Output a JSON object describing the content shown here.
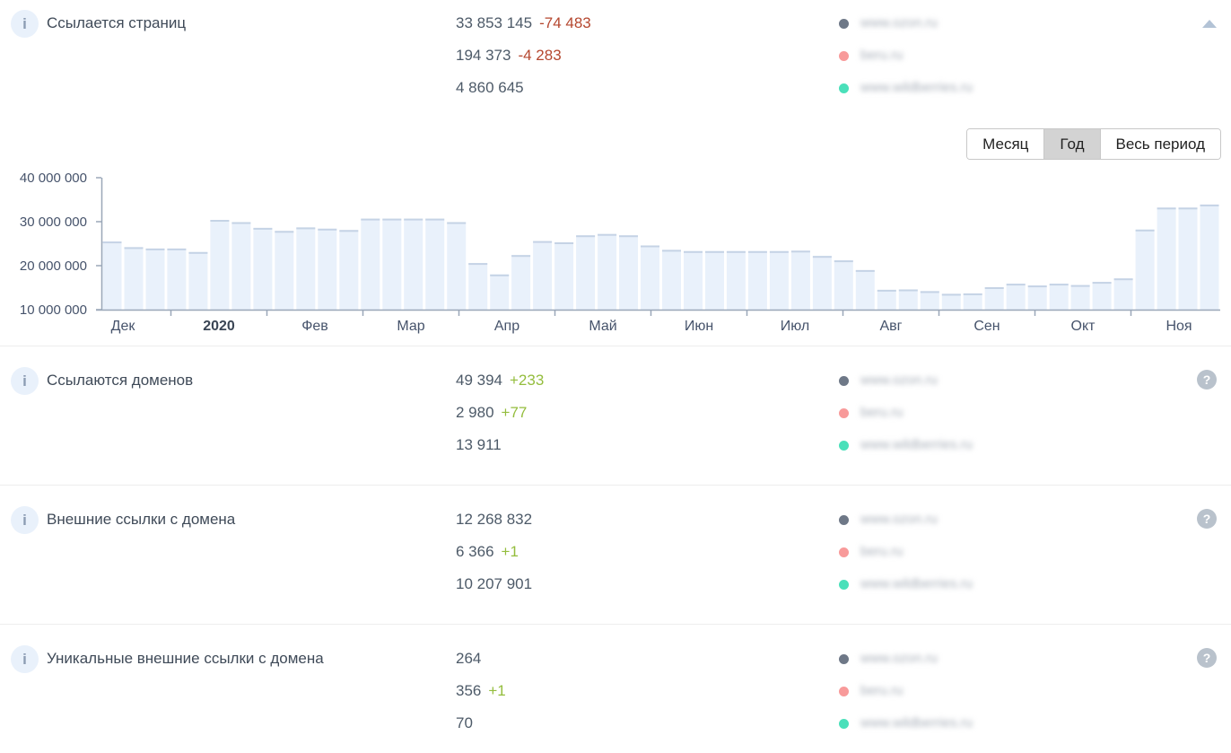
{
  "legend": {
    "domains": [
      {
        "label": "www.ozon.ru",
        "dot_color": "#6e7887"
      },
      {
        "label": "beru.ru",
        "dot_color": "#f89a9a"
      },
      {
        "label": "www.wildberries.ru",
        "dot_color": "#4ae0ba"
      }
    ]
  },
  "colors": {
    "positive_delta": "#94bd3d",
    "negative_delta": "#b5472f",
    "value_text": "#4d5a68",
    "bar_fill": "#e9f1fb",
    "bar_cap": "#c5d3e5",
    "axis_line": "#9aa7b8",
    "axis_text": "#46536b"
  },
  "period": {
    "buttons": [
      {
        "label": "Месяц",
        "selected": false
      },
      {
        "label": "Год",
        "selected": true
      },
      {
        "label": "Весь период",
        "selected": false
      }
    ]
  },
  "sections": [
    {
      "id": "linking-pages",
      "title": "Ссылается страниц",
      "right_icon": "collapse",
      "rows": [
        {
          "value": "33 853 145",
          "delta": "-74 483",
          "delta_type": "negative",
          "domain": "www.ozon.ru"
        },
        {
          "value": "194 373",
          "delta": "-4 283",
          "delta_type": "negative",
          "domain": "beru.ru"
        },
        {
          "value": "4 860 645",
          "delta": "",
          "delta_type": "",
          "domain": "www.wildberries.ru"
        }
      ]
    },
    {
      "id": "referring-domains",
      "title": "Ссылаются доменов",
      "right_icon": "help",
      "rows": [
        {
          "value": "49 394",
          "delta": "+233",
          "delta_type": "positive",
          "domain": "www.ozon.ru"
        },
        {
          "value": "2 980",
          "delta": "+77",
          "delta_type": "positive",
          "domain": "beru.ru"
        },
        {
          "value": "13 911",
          "delta": "",
          "delta_type": "",
          "domain": "www.wildberries.ru"
        }
      ]
    },
    {
      "id": "external-links-from-domain",
      "title": "Внешние ссылки с домена",
      "right_icon": "help",
      "rows": [
        {
          "value": "12 268 832",
          "delta": "",
          "delta_type": "",
          "domain": "www.ozon.ru"
        },
        {
          "value": "6 366",
          "delta": "+1",
          "delta_type": "positive",
          "domain": "beru.ru"
        },
        {
          "value": "10 207 901",
          "delta": "",
          "delta_type": "",
          "domain": "www.wildberries.ru"
        }
      ]
    },
    {
      "id": "unique-external-links-from-domain",
      "title": "Уникальные внешние ссылки с домена",
      "right_icon": "help",
      "rows": [
        {
          "value": "264",
          "delta": "",
          "delta_type": "",
          "domain": "www.ozon.ru"
        },
        {
          "value": "356",
          "delta": "+1",
          "delta_type": "positive",
          "domain": "beru.ru"
        },
        {
          "value": "70",
          "delta": "",
          "delta_type": "",
          "domain": "www.wildberries.ru"
        }
      ]
    }
  ],
  "chart_data": {
    "type": "bar",
    "series_name": "Ссылается страниц (www.ozon.ru)",
    "x_labels": [
      "Дек",
      "2020",
      "Фев",
      "Мар",
      "Апр",
      "Май",
      "Июн",
      "Июл",
      "Авг",
      "Сен",
      "Окт",
      "Ноя"
    ],
    "bold_x_label": "2020",
    "y_tick_labels": [
      "40 000 000",
      "30 000 000",
      "20 000 000",
      "10 000 000"
    ],
    "y_tick_values": [
      40000000,
      30000000,
      20000000,
      10000000
    ],
    "ylim": [
      10000000,
      40000000
    ],
    "grid": false,
    "values": [
      25500000,
      24200000,
      23900000,
      23900000,
      23100000,
      30400000,
      29900000,
      28600000,
      27900000,
      28700000,
      28400000,
      28100000,
      30700000,
      30700000,
      30700000,
      30700000,
      29900000,
      20600000,
      18000000,
      22400000,
      25600000,
      25300000,
      26900000,
      27200000,
      26900000,
      24600000,
      23600000,
      23300000,
      23300000,
      23300000,
      23300000,
      23300000,
      23400000,
      22200000,
      21200000,
      19000000,
      14500000,
      14600000,
      14200000,
      13600000,
      13700000,
      15100000,
      15900000,
      15500000,
      15900000,
      15600000,
      16300000,
      17100000,
      28200000,
      33200000,
      33200000,
      33900000
    ]
  }
}
